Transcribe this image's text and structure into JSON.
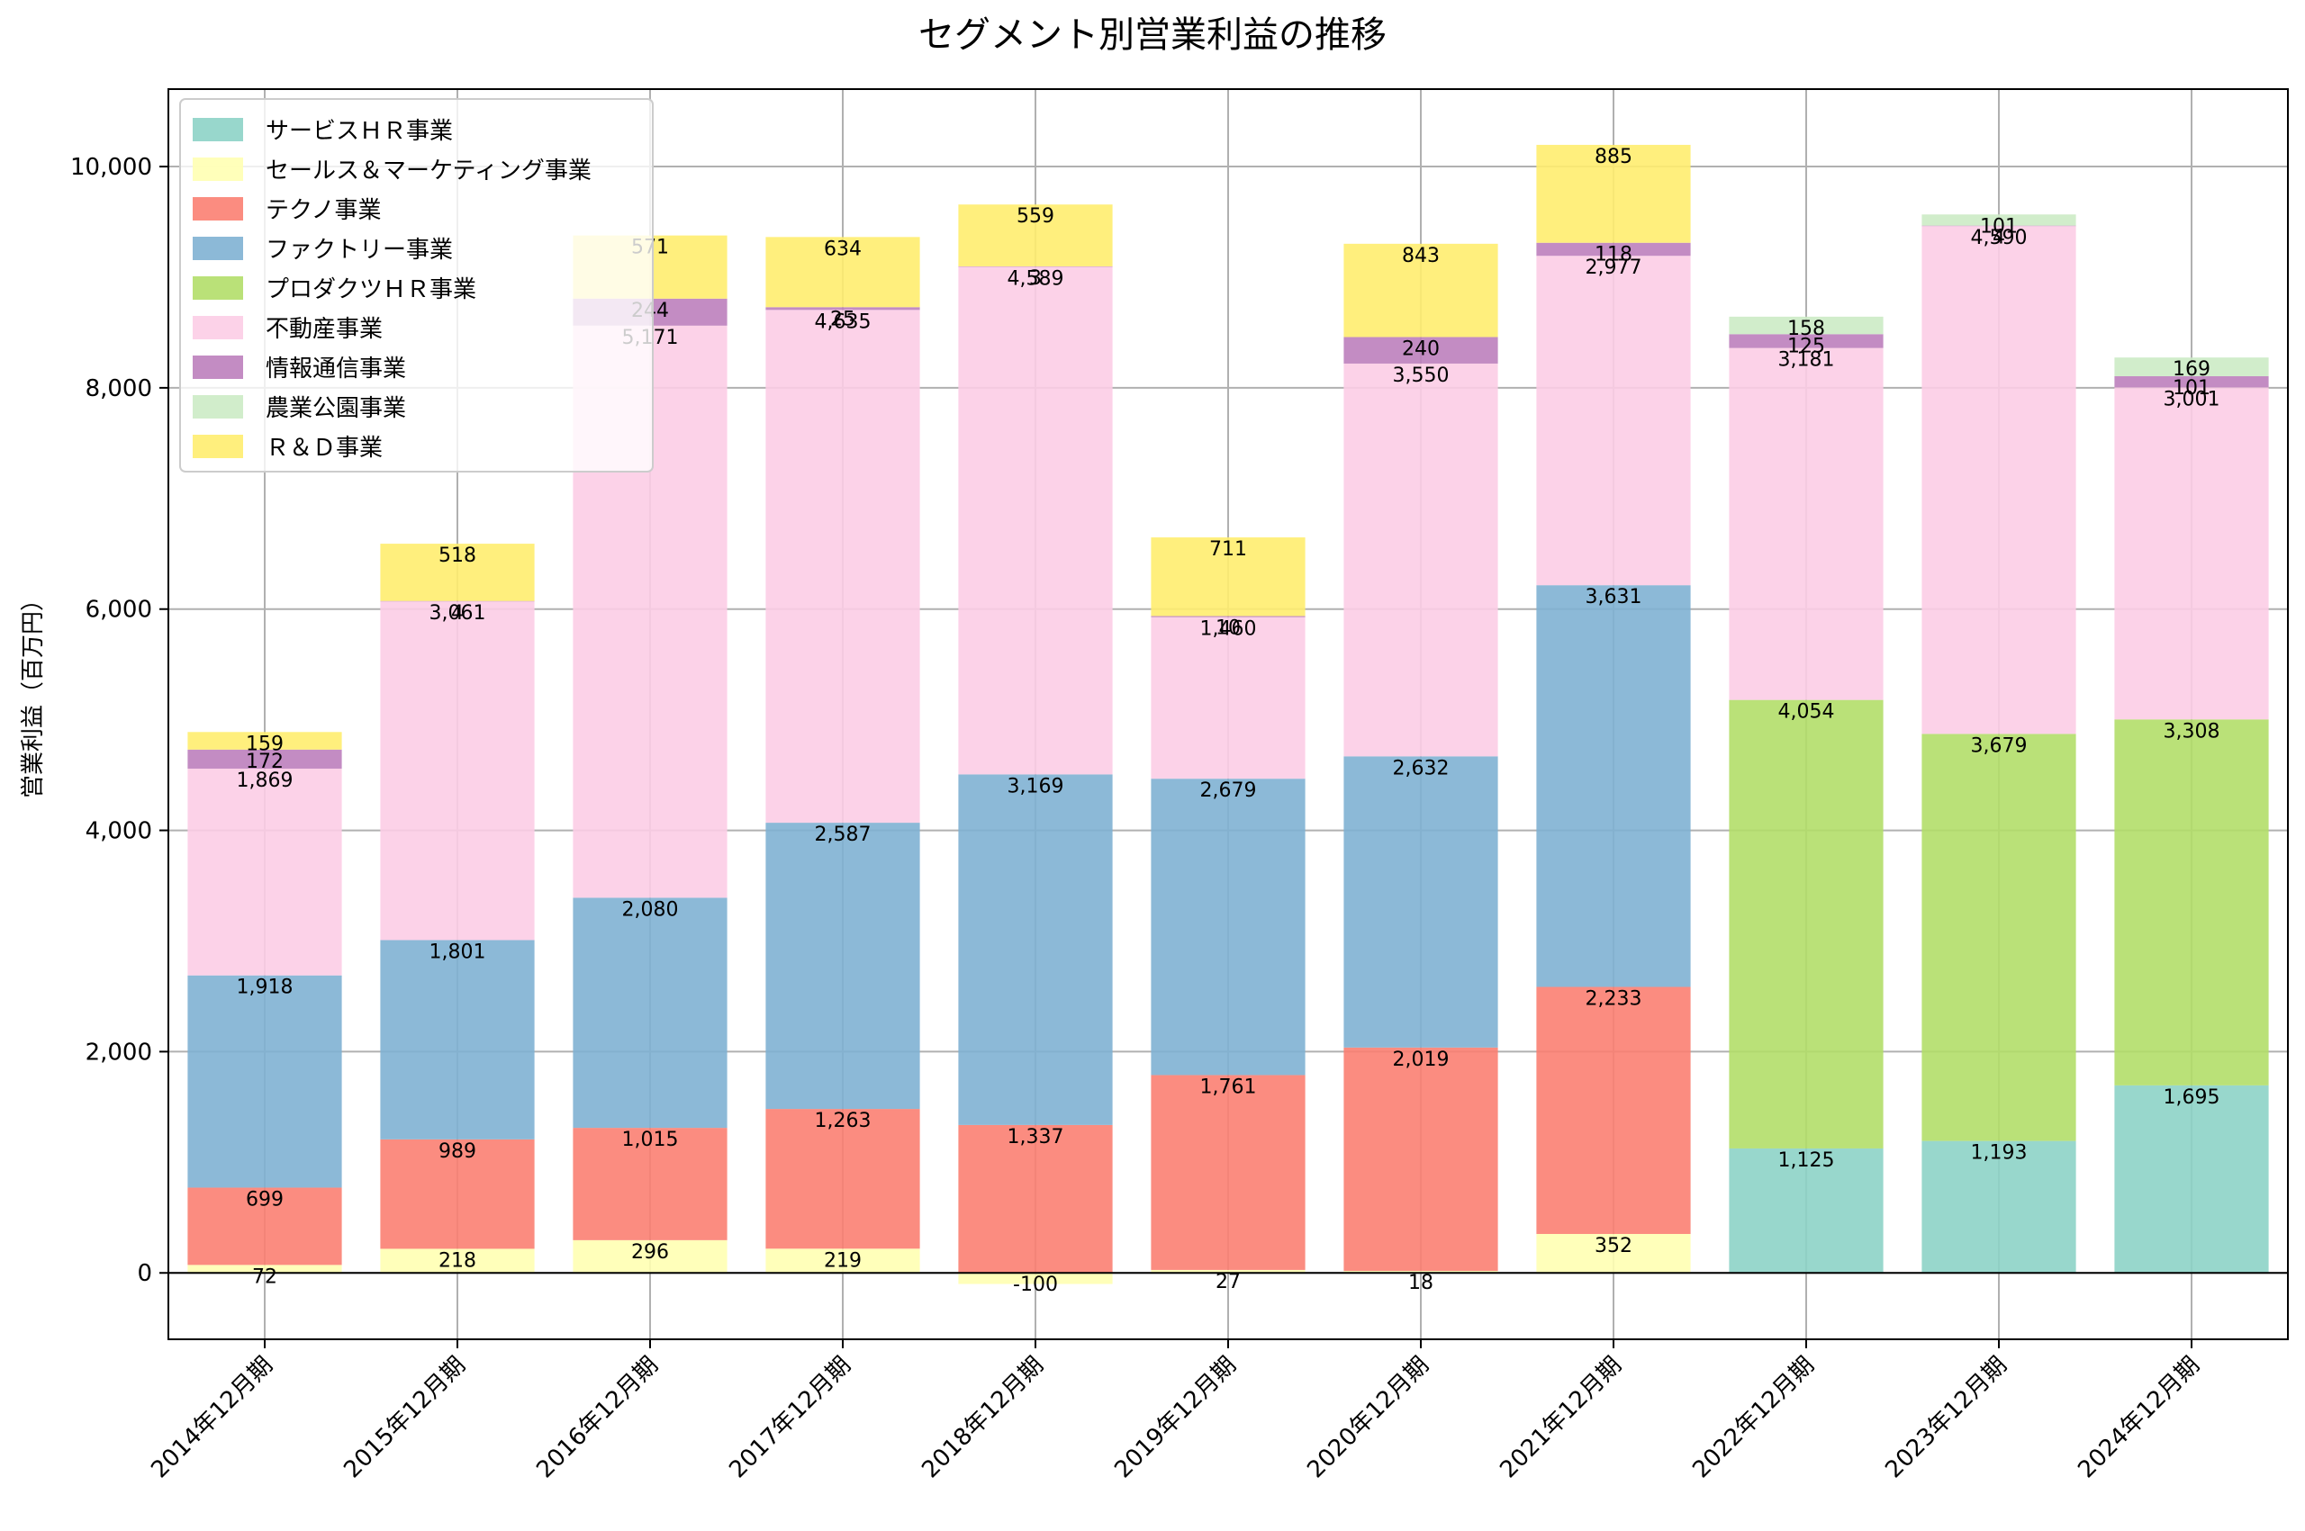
{
  "chart_data": {
    "type": "bar",
    "stacked": true,
    "title": "セグメント別営業利益の推移",
    "xlabel": "",
    "ylabel": "営業利益（百万円）",
    "ylim": [
      -600,
      10700
    ],
    "yticks": [
      0,
      2000,
      4000,
      6000,
      8000,
      10000
    ],
    "ytick_labels": [
      "0",
      "2,000",
      "4,000",
      "6,000",
      "8,000",
      "10,000"
    ],
    "grid": true,
    "legend_position": "top-left",
    "categories": [
      "2014年12月期",
      "2015年12月期",
      "2016年12月期",
      "2017年12月期",
      "2018年12月期",
      "2019年12月期",
      "2020年12月期",
      "2021年12月期",
      "2022年12月期",
      "2023年12月期",
      "2024年12月期"
    ],
    "series": [
      {
        "name": "サービスＨＲ事業",
        "color": "#8dd3c7",
        "values": [
          null,
          null,
          null,
          null,
          null,
          null,
          null,
          null,
          1125,
          1193,
          1695
        ]
      },
      {
        "name": "セールス＆マーケティング事業",
        "color": "#ffffb3",
        "values": [
          72,
          218,
          296,
          219,
          -100,
          27,
          18,
          352,
          null,
          null,
          null
        ]
      },
      {
        "name": "テクノ事業",
        "color": "#fb8072",
        "values": [
          699,
          989,
          1015,
          1263,
          1337,
          1761,
          2019,
          2233,
          null,
          null,
          null
        ]
      },
      {
        "name": "ファクトリー事業",
        "color": "#80b1d3",
        "values": [
          1918,
          1801,
          2080,
          2587,
          3169,
          2679,
          2632,
          3631,
          null,
          null,
          null
        ]
      },
      {
        "name": "プロダクツＨＲ事業",
        "color": "#b3de69",
        "values": [
          null,
          null,
          null,
          null,
          null,
          null,
          null,
          null,
          4054,
          3679,
          3308
        ]
      },
      {
        "name": "不動産事業",
        "color": "#fccde5",
        "values": [
          1869,
          3061,
          5171,
          4635,
          4589,
          1460,
          3550,
          2977,
          3181,
          4590,
          3001
        ]
      },
      {
        "name": "情報通信事業",
        "color": "#bc80bd",
        "values": [
          172,
          4,
          244,
          25,
          3,
          10,
          240,
          118,
          125,
          4,
          101
        ]
      },
      {
        "name": "農業公園事業",
        "color": "#ccebc5",
        "values": [
          null,
          null,
          null,
          null,
          null,
          null,
          null,
          null,
          158,
          101,
          169
        ]
      },
      {
        "name": "Ｒ＆Ｄ事業",
        "color": "#ffed6f",
        "values": [
          159,
          518,
          571,
          634,
          559,
          711,
          843,
          885,
          null,
          null,
          null
        ]
      }
    ]
  }
}
